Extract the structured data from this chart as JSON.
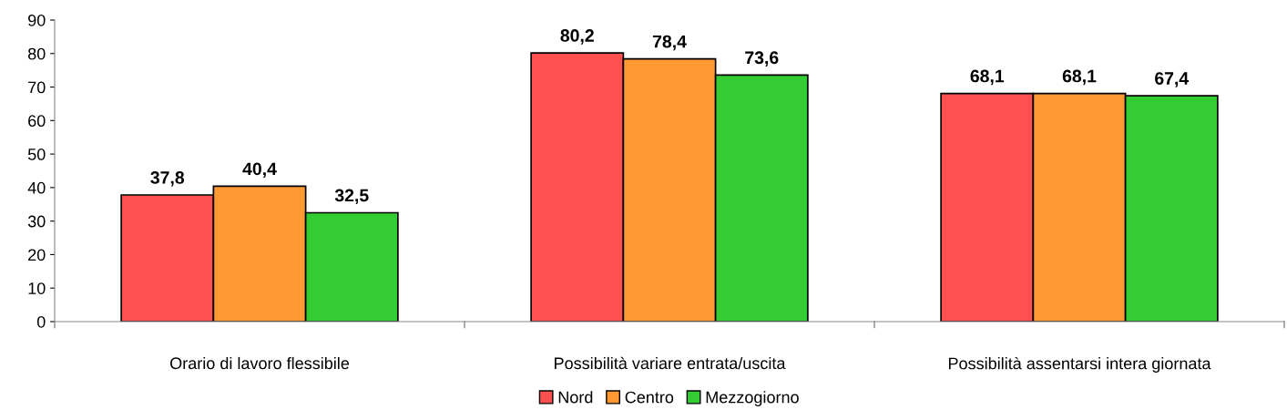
{
  "chart_data": {
    "type": "bar",
    "categories": [
      "Orario di lavoro flessibile",
      "Possibilità variare entrata/uscita",
      "Possibilità assentarsi intera giornata"
    ],
    "series": [
      {
        "name": "Nord",
        "color": "#ff5050",
        "values": [
          37.8,
          80.2,
          68.1
        ],
        "value_labels": [
          "37,8",
          "80,2",
          "68,1"
        ]
      },
      {
        "name": "Centro",
        "color": "#ff9933",
        "values": [
          40.4,
          78.4,
          68.1
        ],
        "value_labels": [
          "40,4",
          "78,4",
          "68,1"
        ]
      },
      {
        "name": "Mezzogiorno",
        "color": "#33cc33",
        "values": [
          32.5,
          73.6,
          67.4
        ],
        "value_labels": [
          "32,5",
          "73,6",
          "67,4"
        ]
      }
    ],
    "ylim": [
      0,
      90
    ],
    "yticks": [
      0,
      10,
      20,
      30,
      40,
      50,
      60,
      70,
      80,
      90
    ],
    "grid": false,
    "legend": "bottom"
  }
}
